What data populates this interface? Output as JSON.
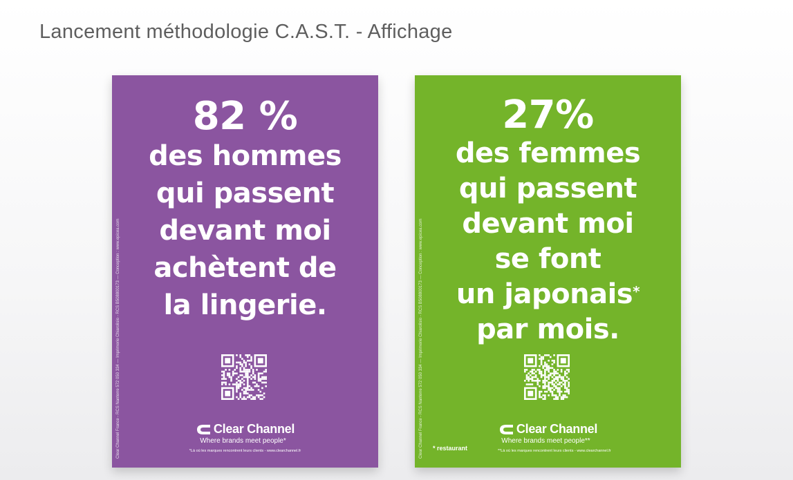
{
  "page_title": "Lancement méthodologie C.A.S.T. - Affichage",
  "posters": [
    {
      "color": "#8b55a0",
      "stat": "82 %",
      "lines": [
        "des hommes",
        "qui passent",
        "devant moi",
        "achètent de",
        "la lingerie."
      ],
      "side_text": "Clear Channel France - RCS Nanterre 572 050 334 — Imprimerie Chiarolisio - RCS B508800173 — Conception : www.epicea.com",
      "logo_name": "Clear Channel",
      "tagline": "Where brands meet people*",
      "footnote": "*Là où les marques rencontrent leurs clients - www.clearchannel.fr"
    },
    {
      "color": "#74b42a",
      "stat": "27%",
      "lines": [
        "des femmes",
        "qui passent",
        "devant moi",
        "se font",
        "un japonais",
        "par mois."
      ],
      "asterisk": "*",
      "side_text": "Clear Channel France - RCS Nanterre 572 050 334 — Imprimerie Chiarolisio - RCS B508800173 — Conception : www.epicea.com",
      "note": "* restaurant",
      "logo_name": "Clear Channel",
      "tagline": "Where brands meet people**",
      "footnote": "**Là où les marques rencontrent leurs clients - www.clearchannel.fr"
    }
  ]
}
